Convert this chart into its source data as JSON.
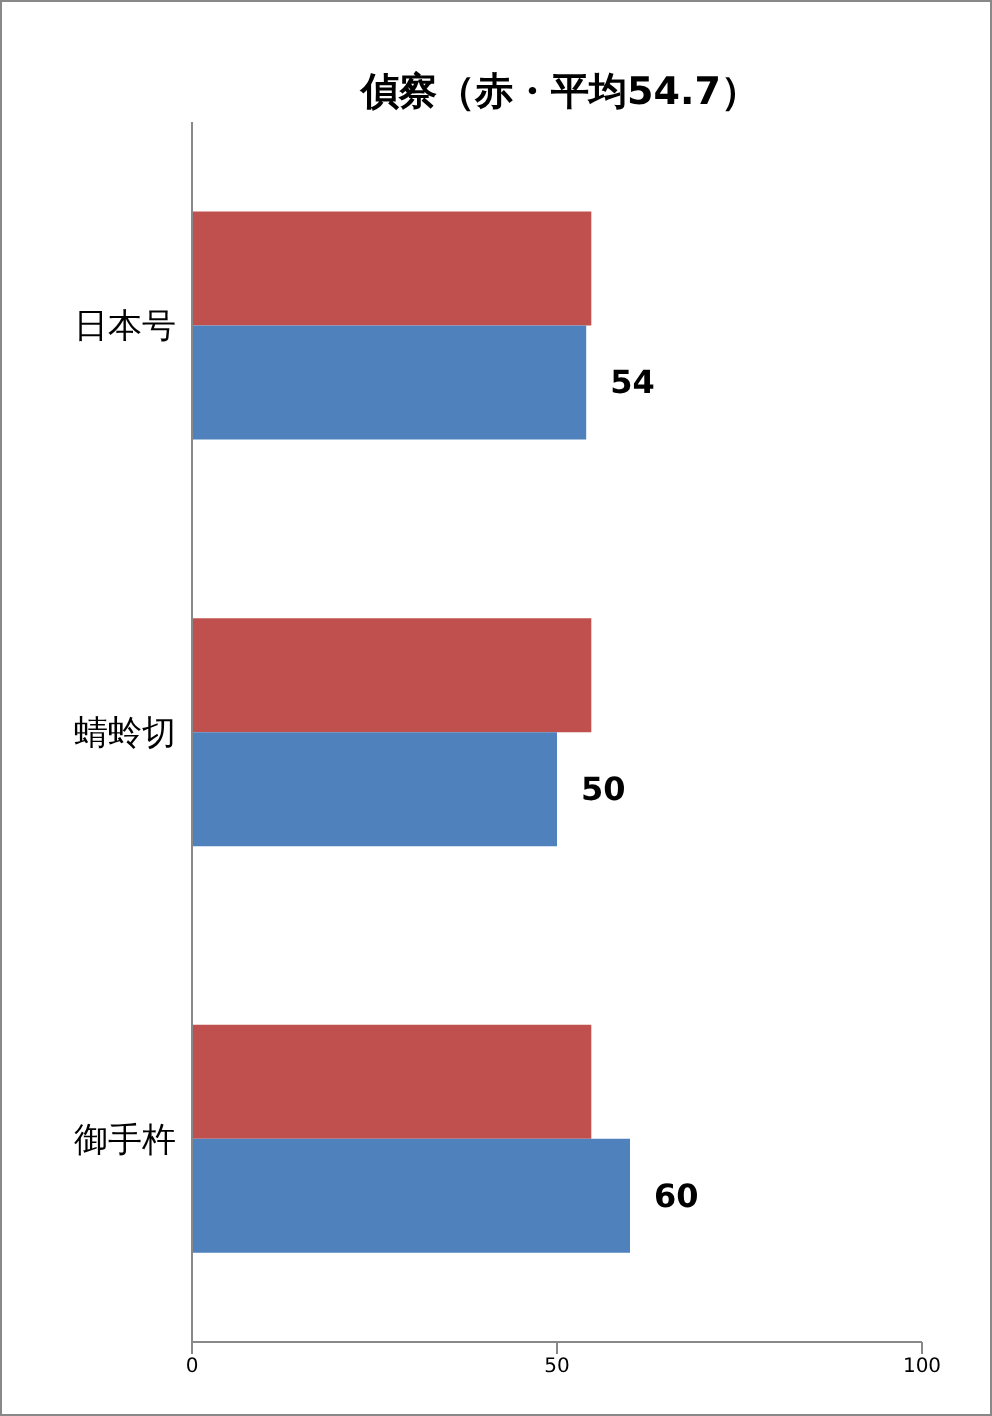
{
  "chart_data": {
    "type": "bar",
    "orientation": "horizontal",
    "title": "偵察（赤・平均54.7）",
    "categories": [
      "日本号",
      "蜻蛉切",
      "御手杵"
    ],
    "series": [
      {
        "color": "#c0504d",
        "values": [
          54.7,
          54.7,
          54.7
        ]
      },
      {
        "color": "#4f81bd",
        "values": [
          54,
          50,
          60
        ],
        "value_labels": [
          "54",
          "50",
          "60"
        ]
      }
    ],
    "xlim": [
      0,
      100
    ],
    "xticks": [
      0,
      50,
      100
    ]
  }
}
